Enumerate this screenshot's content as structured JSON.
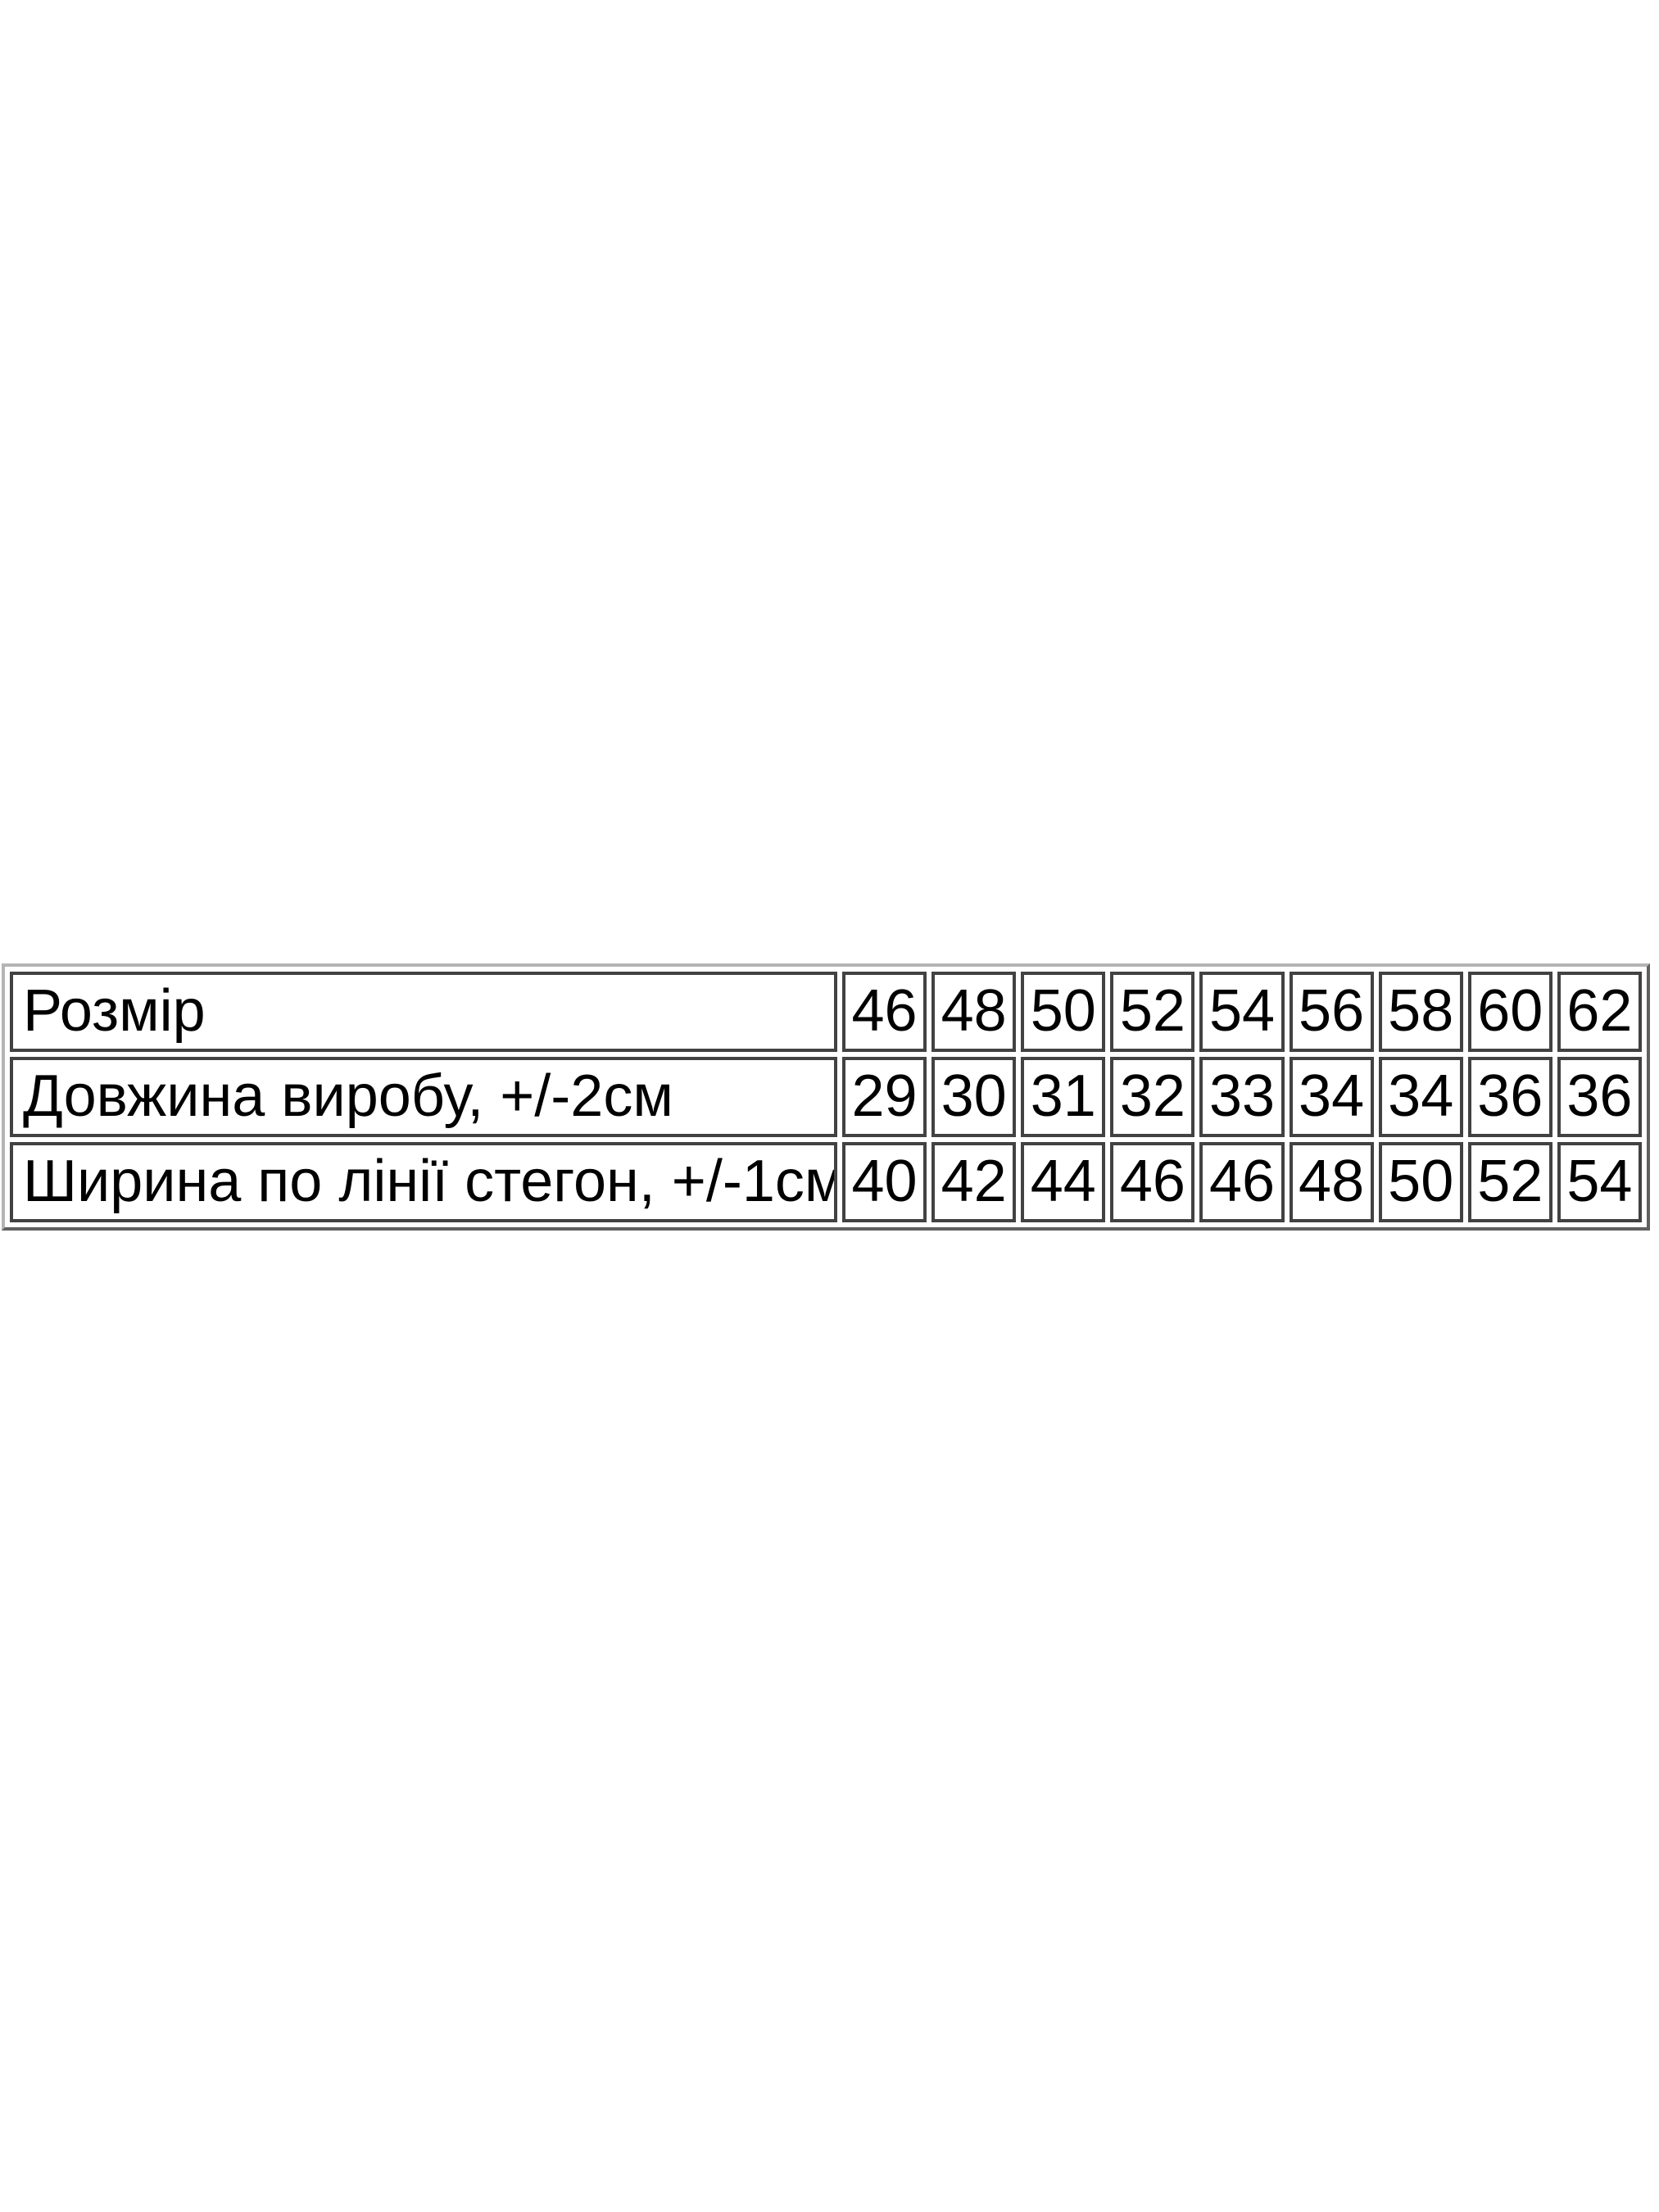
{
  "page": {
    "background": "#ffffff",
    "text_color": "#000000",
    "cell_border_color": "#424242",
    "outer_border_color": "#b4b4b4"
  },
  "chart_data": {
    "type": "table",
    "title": "",
    "rows": [
      {
        "label": "Розмір",
        "values": [
          "46",
          "48",
          "50",
          "52",
          "54",
          "56",
          "58",
          "60",
          "62"
        ]
      },
      {
        "label": "Довжина виробу, +/-2см",
        "values": [
          "29",
          "30",
          "31",
          "32",
          "33",
          "34",
          "34",
          "36",
          "36"
        ]
      },
      {
        "label": "Ширина по лінії стегон, +/-1см",
        "values": [
          "40",
          "42",
          "44",
          "46",
          "46",
          "48",
          "50",
          "52",
          "54"
        ]
      }
    ]
  }
}
